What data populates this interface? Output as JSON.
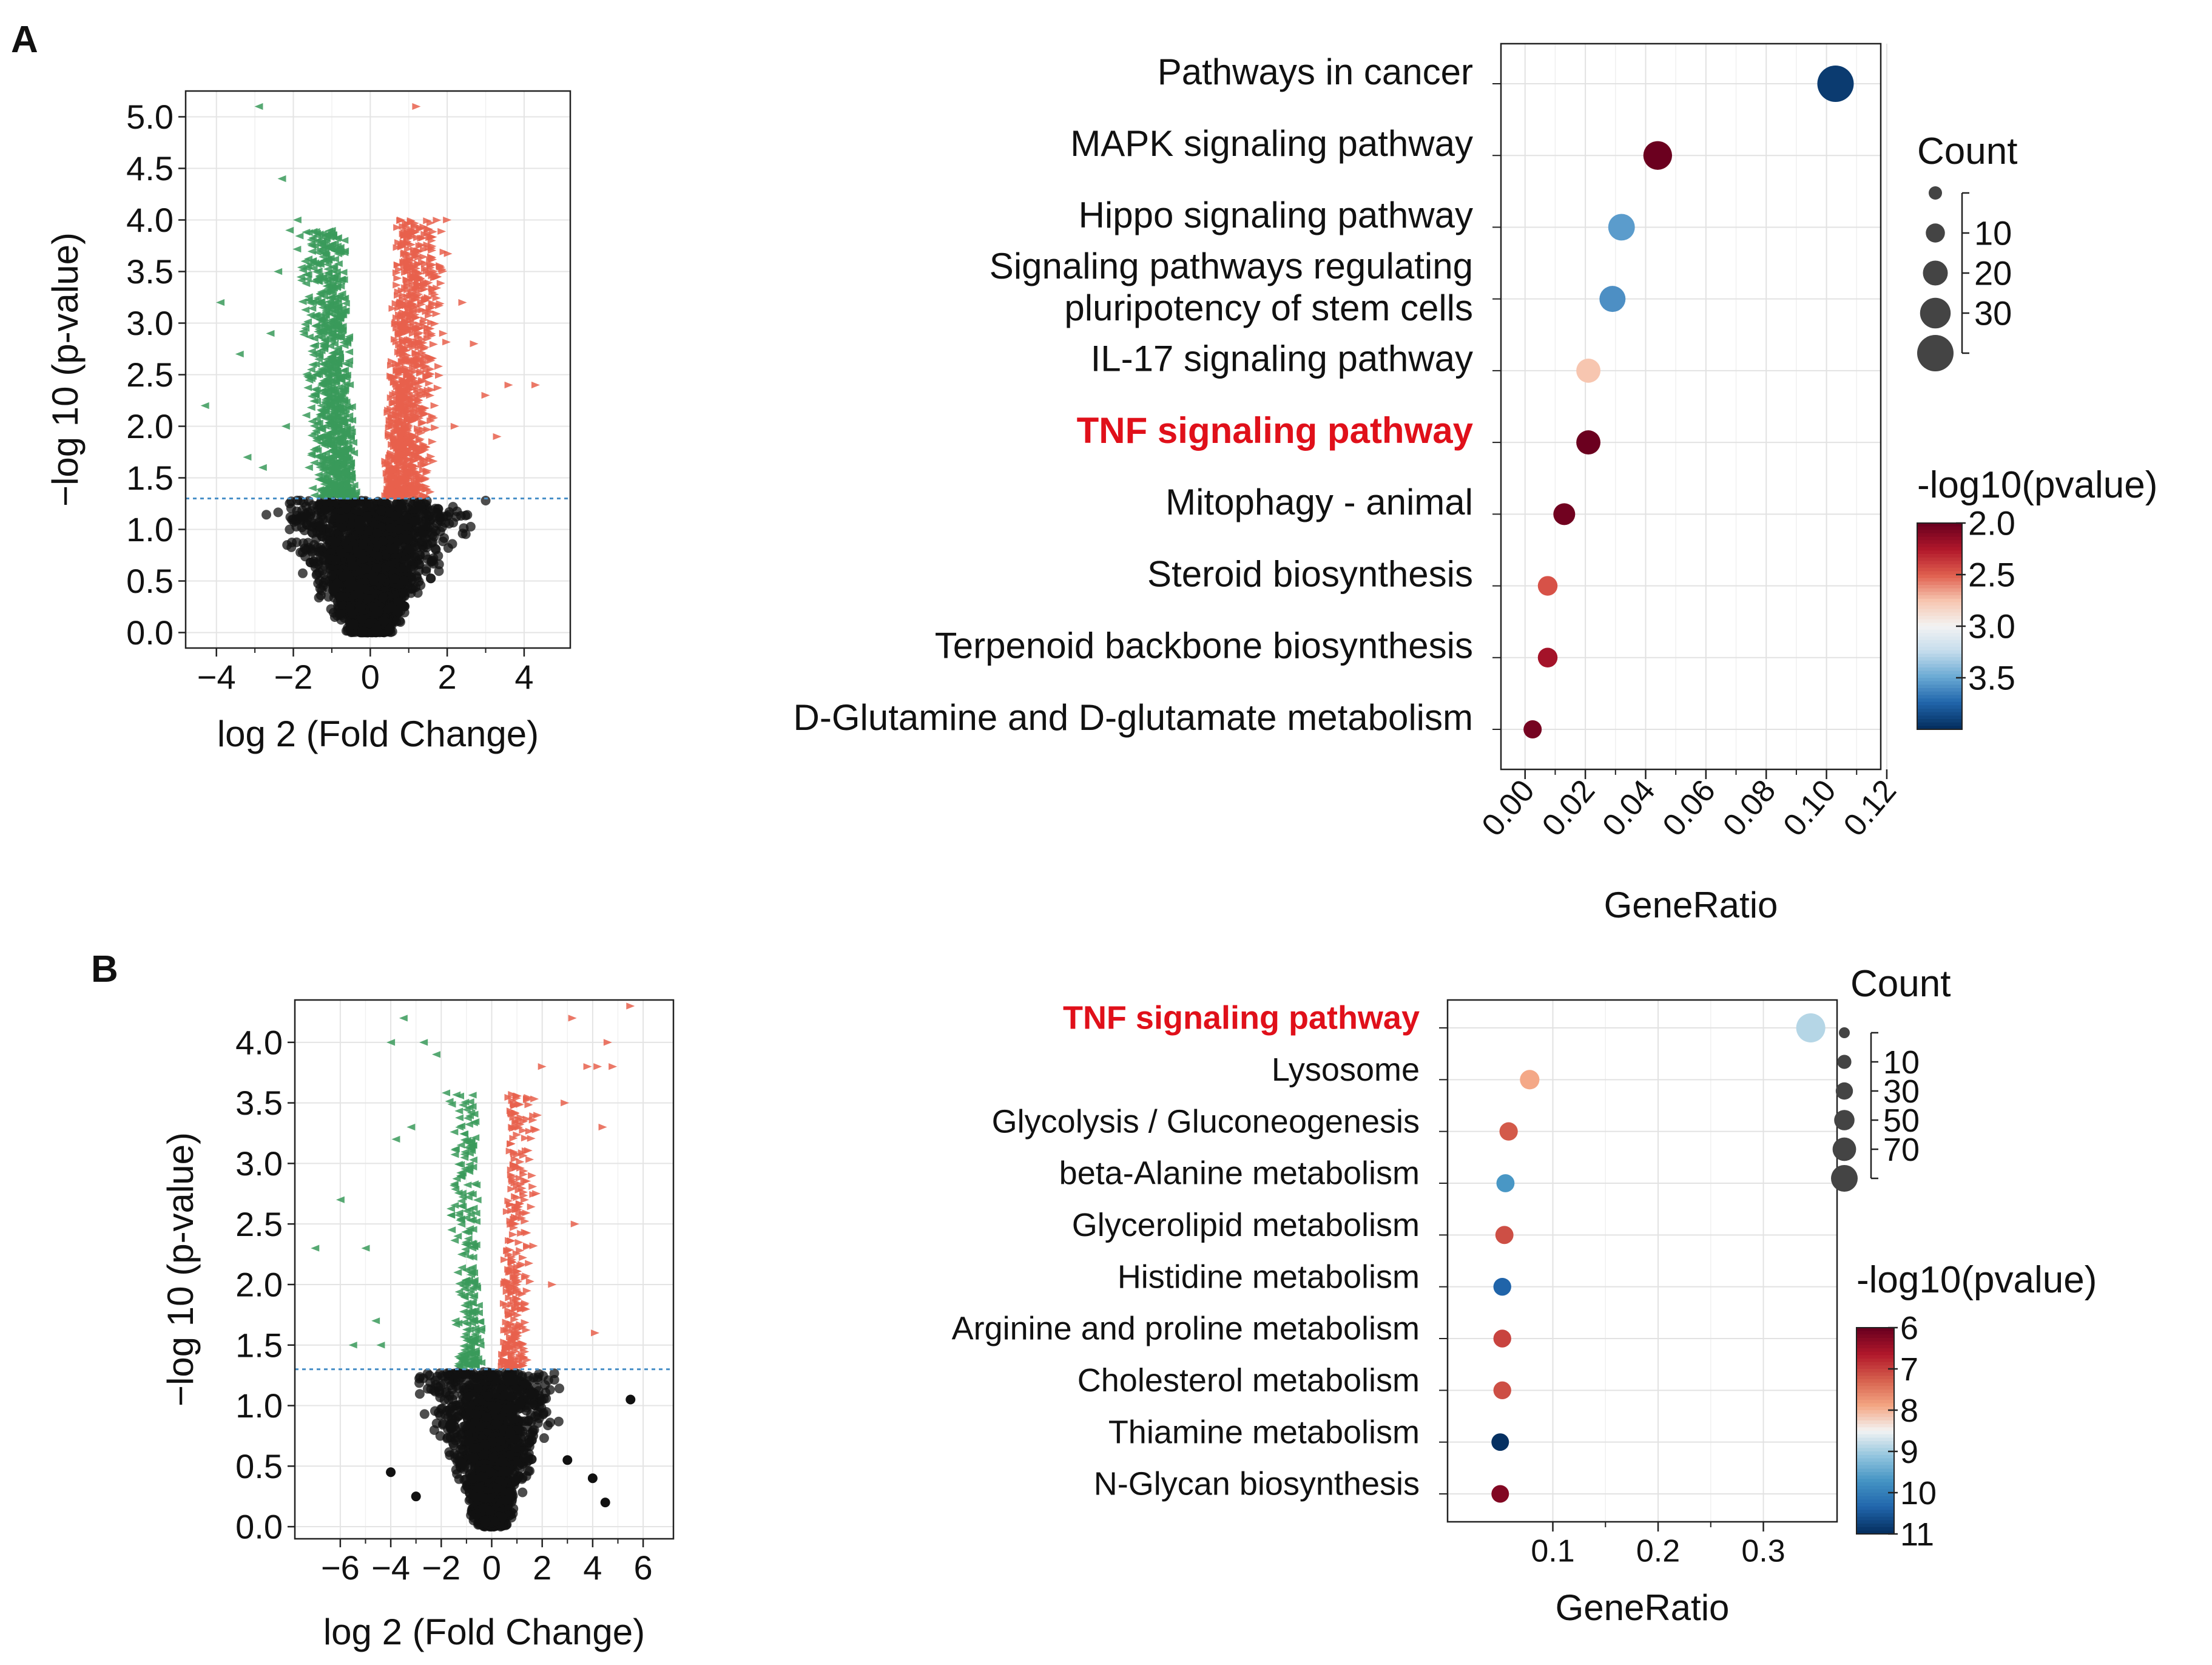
{
  "panel_labels": {
    "a": "A",
    "b": "B"
  },
  "colors": {
    "up": "#e8604c",
    "down": "#3a9a5a",
    "ns": "#111111",
    "threshold": "#4a90c8",
    "highlight": "#e0101a",
    "scale_a": [
      "#6b001f",
      "#b2182b",
      "#e0604f",
      "#f7c6b0",
      "#f3f3f3",
      "#c4dcec",
      "#6aaad4",
      "#2166ac",
      "#053061"
    ],
    "scale_b": [
      "#6b001f",
      "#b2182b",
      "#d6604d",
      "#f4a582",
      "#f3f3f3",
      "#92c5de",
      "#4393c3",
      "#2166ac",
      "#053061"
    ]
  },
  "chart_data": [
    {
      "type": "scatter",
      "panel": "A",
      "name": "volcano-a",
      "xlabel": "log 2 (Fold Change)",
      "ylabel": "−log 10 (p-value)",
      "xlim": [
        -4.8,
        5.2
      ],
      "ylim": [
        -0.15,
        5.25
      ],
      "x_ticks": [
        -4,
        -2,
        0,
        2,
        4
      ],
      "x_tick_labels": [
        "−4",
        "−2",
        "0",
        "2",
        "4"
      ],
      "y_ticks": [
        0,
        0.5,
        1,
        1.5,
        2,
        2.5,
        3,
        3.5,
        4,
        4.5,
        5
      ],
      "y_tick_labels": [
        "0.0",
        "0.5",
        "1.0",
        "1.5",
        "2.0",
        "2.5",
        "3.0",
        "3.5",
        "4.0",
        "4.5",
        "5.0"
      ],
      "threshold_y": 1.3,
      "series": [
        {
          "name": "down",
          "marker": "triangle-left",
          "x": [
            -2.9,
            -2.3,
            -3.9,
            -4.3,
            -3.4,
            -3.2,
            -2.8,
            -2.6,
            -2.4,
            -2.1,
            -1.9,
            -1.7,
            -1.5,
            -1.3,
            -1.1,
            -2.2,
            -1.6
          ],
          "y": [
            5.1,
            4.4,
            3.2,
            2.2,
            2.7,
            1.7,
            1.6,
            2.9,
            3.5,
            3.9,
            4.0,
            3.6,
            3.2,
            2.9,
            2.4,
            2.0,
            1.6
          ]
        },
        {
          "name": "up",
          "marker": "triangle-right",
          "x": [
            1.2,
            0.8,
            1.1,
            1.6,
            2.0,
            2.4,
            2.7,
            3.0,
            3.3,
            3.6,
            4.3,
            1.4,
            1.9,
            2.2,
            0.9
          ],
          "y": [
            5.1,
            4.0,
            3.9,
            3.8,
            4.0,
            3.2,
            2.8,
            2.3,
            1.9,
            2.4,
            2.4,
            3.4,
            2.9,
            2.0,
            1.6
          ]
        }
      ],
      "dense_regions": {
        "down": {
          "n": 950,
          "x": [
            -2.4,
            -0.5
          ],
          "y": [
            1.3,
            3.9
          ]
        },
        "up": {
          "n": 1050,
          "x": [
            0.5,
            2.6
          ],
          "y": [
            1.3,
            4.0
          ]
        },
        "ns": {
          "n": 2400,
          "x": [
            -3.2,
            3.2
          ],
          "y": [
            0.0,
            1.3
          ]
        }
      }
    },
    {
      "type": "scatter",
      "panel": "A",
      "name": "dotplot-a",
      "xlabel": "GeneRatio",
      "xlim": [
        -0.008,
        0.118
      ],
      "x_ticks": [
        0.0,
        0.02,
        0.04,
        0.06,
        0.08,
        0.1,
        0.12
      ],
      "x_tick_labels": [
        "0.00",
        "0.02",
        "0.04",
        "0.06",
        "0.08",
        "0.10",
        "0.12"
      ],
      "categories": [
        "Pathways in cancer",
        "MAPK signaling pathway",
        "Hippo signaling pathway",
        "Signaling pathways regulating\npluripotency of stem cells",
        "IL-17 signaling pathway",
        "TNF signaling pathway",
        "Mitophagy - animal",
        "Steroid biosynthesis",
        "Terpenoid backbone biosynthesis",
        "D-Glutamine and D-glutamate metabolism"
      ],
      "highlight": "TNF signaling pathway",
      "gene_ratio": [
        0.103,
        0.044,
        0.032,
        0.029,
        0.021,
        0.021,
        0.013,
        0.0075,
        0.0075,
        0.0025
      ],
      "count": [
        36,
        15,
        11,
        10,
        7,
        7,
        4,
        2,
        2,
        1
      ],
      "neg_log10_p": [
        3.95,
        1.98,
        3.55,
        3.6,
        2.75,
        2.0,
        2.02,
        2.45,
        2.2,
        2.04
      ],
      "legend_count": {
        "title": "Count",
        "values": [
          10,
          20,
          30
        ]
      },
      "legend_color": {
        "title": "-log10(pvalue)",
        "ticks": [
          2.0,
          2.5,
          3.0,
          3.5
        ],
        "tick_labels": [
          "2.0",
          "2.5",
          "3.0",
          "3.5"
        ],
        "range": [
          2.0,
          4.0
        ]
      }
    },
    {
      "type": "scatter",
      "panel": "B",
      "name": "volcano-b",
      "xlabel": "log 2 (Fold Change)",
      "ylabel": "−log 10 (p-value)",
      "xlim": [
        -7.8,
        7.2
      ],
      "ylim": [
        -0.1,
        4.35
      ],
      "x_ticks": [
        -6,
        -4,
        -2,
        0,
        2,
        4,
        6
      ],
      "x_tick_labels": [
        "−6",
        "−4",
        "−2",
        "0",
        "2",
        "4",
        "6"
      ],
      "y_ticks": [
        0,
        0.5,
        1,
        1.5,
        2,
        2.5,
        3,
        3.5,
        4
      ],
      "y_tick_labels": [
        "0.0",
        "0.5",
        "1.0",
        "1.5",
        "2.0",
        "2.5",
        "3.0",
        "3.5",
        "4.0"
      ],
      "threshold_y": 1.3,
      "series": [
        {
          "name": "down",
          "marker": "triangle-left",
          "x": [
            -7.0,
            -5.0,
            -4.4,
            -3.8,
            -3.5,
            -2.7,
            -4.0,
            -5.5,
            -4.6,
            -3.2,
            -2.2,
            -6.0
          ],
          "y": [
            2.3,
            2.3,
            1.5,
            3.2,
            4.2,
            4.0,
            4.0,
            1.5,
            1.7,
            3.3,
            3.9,
            2.7
          ]
        },
        {
          "name": "up",
          "marker": "triangle-right",
          "x": [
            3.2,
            5.5,
            4.6,
            3.8,
            4.2,
            4.8,
            2.9,
            2.0,
            4.4,
            3.3,
            2.4,
            1.6,
            4.1
          ],
          "y": [
            4.2,
            4.3,
            4.0,
            3.8,
            3.8,
            3.8,
            3.5,
            3.8,
            3.3,
            2.5,
            2.0,
            2.9,
            1.6
          ]
        },
        {
          "name": "ns",
          "marker": "circle",
          "x": [
            5.5,
            4.0,
            3.0,
            -3.0,
            -4.0,
            4.5
          ],
          "y": [
            1.05,
            0.4,
            0.55,
            0.25,
            0.45,
            0.2
          ]
        }
      ],
      "dense_regions": {
        "down": {
          "n": 260,
          "x": [
            -3.2,
            -0.5
          ],
          "y": [
            1.3,
            3.6
          ]
        },
        "up": {
          "n": 300,
          "x": [
            0.5,
            3.4
          ],
          "y": [
            1.3,
            3.6
          ]
        },
        "ns": {
          "n": 1900,
          "x": [
            -3.5,
            3.5
          ],
          "y": [
            0.0,
            1.3
          ]
        }
      }
    },
    {
      "type": "scatter",
      "panel": "B",
      "name": "dotplot-b",
      "xlabel": "GeneRatio",
      "xlim": [
        0.0,
        0.37
      ],
      "x_ticks": [
        0.1,
        0.2,
        0.3
      ],
      "x_tick_labels": [
        "0.1",
        "0.2",
        "0.3"
      ],
      "categories": [
        "TNF signaling pathway",
        "Lysosome",
        "Glycolysis / Gluconeogenesis",
        "beta-Alanine metabolism",
        "Glycerolipid metabolism",
        "Histidine metabolism",
        "Arginine and proline metabolism",
        "Cholesterol metabolism",
        "Thiamine metabolism",
        "N-Glycan biosynthesis"
      ],
      "highlight": "TNF signaling pathway",
      "gene_ratio": [
        0.345,
        0.078,
        0.058,
        0.055,
        0.054,
        0.052,
        0.052,
        0.052,
        0.05,
        0.05
      ],
      "count": [
        90,
        20,
        15,
        14,
        14,
        13,
        13,
        13,
        12,
        12
      ],
      "neg_log10_p": [
        8.9,
        7.9,
        7.2,
        9.7,
        7.1,
        10.4,
        7.0,
        7.1,
        11.0,
        6.2
      ],
      "legend_count": {
        "title": "Count",
        "values": [
          10,
          30,
          50,
          70
        ]
      },
      "legend_color": {
        "title": "-log10(pvalue)",
        "ticks": [
          6,
          7,
          8,
          9,
          10,
          11
        ],
        "tick_labels": [
          "6",
          "7",
          "8",
          "9",
          "10",
          "11"
        ],
        "range": [
          6,
          11
        ]
      }
    }
  ]
}
